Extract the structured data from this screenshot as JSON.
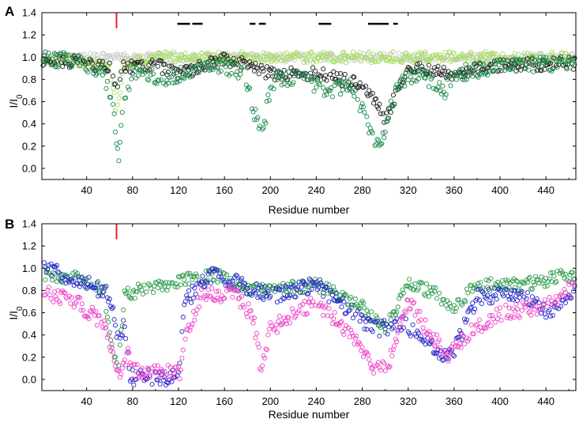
{
  "chart_data": [
    {
      "panel_label": "A",
      "type": "scatter",
      "xlabel": "Residue number",
      "ylabel": "I/I0",
      "xlim": [
        1,
        466
      ],
      "ylim": [
        -0.1,
        1.4
      ],
      "x_ticks": [
        40,
        80,
        120,
        160,
        200,
        240,
        280,
        320,
        360,
        400,
        440
      ],
      "y_ticks": [
        0.0,
        0.2,
        0.4,
        0.6,
        0.8,
        1.0,
        1.2,
        1.4
      ],
      "grid": false,
      "legend": "none",
      "marker": "open-circle",
      "markers": {
        "red_line": {
          "residue": 66,
          "y_from": 1.26,
          "y_to": 1.4,
          "color": "#e8202a"
        },
        "black_bars": [
          [
            119,
            130
          ],
          [
            132,
            141
          ],
          [
            182,
            187
          ],
          [
            190,
            196
          ],
          [
            242,
            253
          ],
          [
            285,
            303
          ],
          [
            307,
            311
          ]
        ],
        "black_bar_y": 1.3
      },
      "series": [
        {
          "color": "#c8c8c8",
          "profile": [
            [
              1,
              1.0
            ],
            [
              466,
              1.0
            ]
          ],
          "noise": 0.035
        },
        {
          "color": "#a6e05c",
          "profile": [
            [
              1,
              0.97
            ],
            [
              30,
              0.98
            ],
            [
              60,
              0.9
            ],
            [
              66,
              0.5
            ],
            [
              72,
              0.95
            ],
            [
              110,
              1.0
            ],
            [
              466,
              1.0
            ]
          ],
          "noise": 0.05
        },
        {
          "color": "#1f1f1f",
          "profile": [
            [
              1,
              0.98
            ],
            [
              40,
              0.95
            ],
            [
              60,
              0.9
            ],
            [
              66,
              0.7
            ],
            [
              72,
              0.9
            ],
            [
              100,
              0.93
            ],
            [
              120,
              0.85
            ],
            [
              160,
              0.98
            ],
            [
              190,
              0.9
            ],
            [
              200,
              0.85
            ],
            [
              240,
              0.85
            ],
            [
              280,
              0.75
            ],
            [
              300,
              0.45
            ],
            [
              320,
              0.9
            ],
            [
              360,
              0.85
            ],
            [
              400,
              0.92
            ],
            [
              466,
              0.95
            ]
          ],
          "noise": 0.06
        },
        {
          "color": "#1a8a4a",
          "profile": [
            [
              1,
              0.98
            ],
            [
              30,
              0.98
            ],
            [
              55,
              0.85
            ],
            [
              63,
              0.55
            ],
            [
              68,
              0.08
            ],
            [
              72,
              0.6
            ],
            [
              80,
              0.85
            ],
            [
              110,
              0.8
            ],
            [
              125,
              0.85
            ],
            [
              150,
              0.95
            ],
            [
              178,
              0.85
            ],
            [
              186,
              0.5
            ],
            [
              194,
              0.3
            ],
            [
              198,
              0.65
            ],
            [
              205,
              0.82
            ],
            [
              230,
              0.8
            ],
            [
              250,
              0.7
            ],
            [
              270,
              0.75
            ],
            [
              285,
              0.4
            ],
            [
              293,
              0.2
            ],
            [
              300,
              0.35
            ],
            [
              310,
              0.75
            ],
            [
              330,
              0.85
            ],
            [
              352,
              0.7
            ],
            [
              360,
              0.85
            ],
            [
              400,
              0.92
            ],
            [
              466,
              0.95
            ]
          ],
          "noise": 0.07
        }
      ]
    },
    {
      "panel_label": "B",
      "type": "scatter",
      "xlabel": "Residue number",
      "ylabel": "I/I0",
      "xlim": [
        1,
        466
      ],
      "ylim": [
        -0.1,
        1.4
      ],
      "x_ticks": [
        40,
        80,
        120,
        160,
        200,
        240,
        280,
        320,
        360,
        400,
        440
      ],
      "y_ticks": [
        0.0,
        0.2,
        0.4,
        0.6,
        0.8,
        1.0,
        1.2,
        1.4
      ],
      "grid": false,
      "legend": "none",
      "marker": "open-circle",
      "markers": {
        "red_line": {
          "residue": 66,
          "y_from": 1.26,
          "y_to": 1.4,
          "color": "#e8202a"
        }
      },
      "series": [
        {
          "color": "#2a9a4a",
          "profile": [
            [
              1,
              0.95
            ],
            [
              30,
              0.92
            ],
            [
              55,
              0.8
            ],
            [
              63,
              0.25
            ],
            [
              68,
              0.15
            ],
            [
              73,
              0.75
            ],
            [
              85,
              0.8
            ],
            [
              110,
              0.85
            ],
            [
              150,
              0.95
            ],
            [
              180,
              0.8
            ],
            [
              200,
              0.8
            ],
            [
              240,
              0.85
            ],
            [
              280,
              0.65
            ],
            [
              300,
              0.45
            ],
            [
              320,
              0.85
            ],
            [
              340,
              0.8
            ],
            [
              360,
              0.65
            ],
            [
              380,
              0.85
            ],
            [
              420,
              0.85
            ],
            [
              466,
              0.95
            ]
          ],
          "noise": 0.06
        },
        {
          "color": "#2424c8",
          "profile": [
            [
              1,
              1.0
            ],
            [
              40,
              0.88
            ],
            [
              60,
              0.75
            ],
            [
              68,
              0.3
            ],
            [
              72,
              0.5
            ],
            [
              78,
              0.02
            ],
            [
              120,
              0.02
            ],
            [
              125,
              0.7
            ],
            [
              150,
              0.95
            ],
            [
              175,
              0.85
            ],
            [
              200,
              0.75
            ],
            [
              240,
              0.85
            ],
            [
              260,
              0.7
            ],
            [
              290,
              0.45
            ],
            [
              315,
              0.5
            ],
            [
              340,
              0.3
            ],
            [
              355,
              0.2
            ],
            [
              362,
              0.3
            ],
            [
              380,
              0.75
            ],
            [
              420,
              0.75
            ],
            [
              440,
              0.6
            ],
            [
              466,
              0.8
            ]
          ],
          "noise": 0.07
        },
        {
          "color": "#ee44c8",
          "profile": [
            [
              1,
              0.8
            ],
            [
              30,
              0.7
            ],
            [
              55,
              0.5
            ],
            [
              65,
              0.15
            ],
            [
              70,
              0.0
            ],
            [
              76,
              0.3
            ],
            [
              80,
              0.07
            ],
            [
              122,
              0.07
            ],
            [
              125,
              0.35
            ],
            [
              140,
              0.75
            ],
            [
              170,
              0.78
            ],
            [
              185,
              0.55
            ],
            [
              192,
              0.1
            ],
            [
              200,
              0.45
            ],
            [
              240,
              0.7
            ],
            [
              270,
              0.4
            ],
            [
              290,
              0.1
            ],
            [
              302,
              0.1
            ],
            [
              320,
              0.7
            ],
            [
              340,
              0.4
            ],
            [
              355,
              0.2
            ],
            [
              370,
              0.4
            ],
            [
              400,
              0.6
            ],
            [
              440,
              0.65
            ],
            [
              466,
              0.85
            ]
          ],
          "noise": 0.07
        }
      ]
    }
  ]
}
